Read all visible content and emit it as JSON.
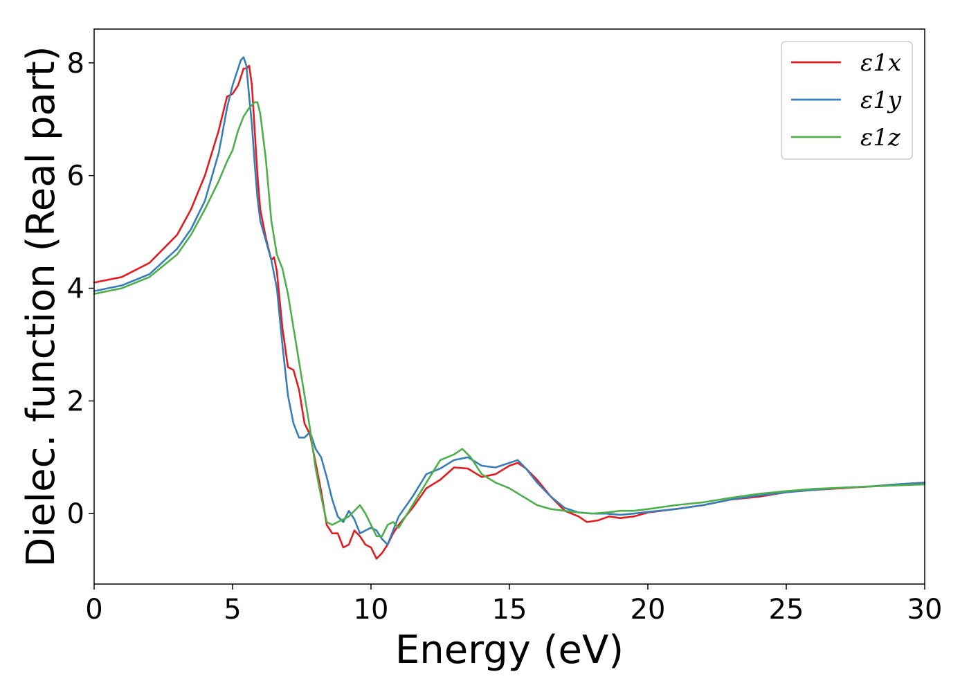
{
  "chart_data": {
    "type": "line",
    "xlabel": "Energy (eV)",
    "ylabel": "Dielec. function (Real part)",
    "xlim": [
      0,
      30
    ],
    "ylim": [
      -1.25,
      8.6
    ],
    "xticks": [
      0,
      5,
      10,
      15,
      20,
      25,
      30
    ],
    "yticks": [
      0,
      2,
      4,
      6,
      8
    ],
    "grid": false,
    "legend_position": "top-right",
    "series": [
      {
        "name": "ε1x",
        "color": "#e41a1c",
        "x": [
          0,
          1,
          2,
          3,
          3.5,
          4,
          4.5,
          4.8,
          5.0,
          5.2,
          5.4,
          5.5,
          5.6,
          5.7,
          5.8,
          5.9,
          6.0,
          6.2,
          6.4,
          6.5,
          6.6,
          6.8,
          7.0,
          7.2,
          7.4,
          7.6,
          7.8,
          8.0,
          8.2,
          8.4,
          8.6,
          8.8,
          9.0,
          9.2,
          9.4,
          9.6,
          9.8,
          10.0,
          10.2,
          10.4,
          10.6,
          10.8,
          11.0,
          11.5,
          12.0,
          12.5,
          13.0,
          13.5,
          14.0,
          14.5,
          15.0,
          15.3,
          15.6,
          16.0,
          16.5,
          17.0,
          17.5,
          17.8,
          18.2,
          18.6,
          19.0,
          19.5,
          20.0,
          21.0,
          22.0,
          23.0,
          24.0,
          25.0,
          26.0,
          27.0,
          28.0,
          29.0,
          30.0
        ],
        "values": [
          4.1,
          4.2,
          4.45,
          4.95,
          5.4,
          6.0,
          6.8,
          7.4,
          7.45,
          7.6,
          7.9,
          7.9,
          7.95,
          7.6,
          6.8,
          6.0,
          5.4,
          4.9,
          4.5,
          4.55,
          4.3,
          3.3,
          2.6,
          2.55,
          2.2,
          1.6,
          1.4,
          0.9,
          0.4,
          -0.2,
          -0.35,
          -0.35,
          -0.6,
          -0.55,
          -0.3,
          -0.4,
          -0.55,
          -0.6,
          -0.8,
          -0.7,
          -0.55,
          -0.35,
          -0.2,
          0.1,
          0.45,
          0.6,
          0.82,
          0.8,
          0.65,
          0.7,
          0.85,
          0.9,
          0.8,
          0.6,
          0.3,
          0.05,
          -0.05,
          -0.15,
          -0.12,
          -0.05,
          -0.08,
          -0.05,
          0.02,
          0.08,
          0.15,
          0.25,
          0.3,
          0.38,
          0.42,
          0.45,
          0.48,
          0.52,
          0.55
        ]
      },
      {
        "name": "ε1y",
        "color": "#377eb8",
        "x": [
          0,
          1,
          2,
          3,
          3.5,
          4,
          4.5,
          4.8,
          5.0,
          5.2,
          5.3,
          5.4,
          5.5,
          5.6,
          5.7,
          5.8,
          5.9,
          6.0,
          6.2,
          6.4,
          6.6,
          6.8,
          7.0,
          7.2,
          7.4,
          7.6,
          7.8,
          8.0,
          8.2,
          8.4,
          8.6,
          8.8,
          9.0,
          9.2,
          9.4,
          9.6,
          9.8,
          10.0,
          10.2,
          10.4,
          10.6,
          10.8,
          11.0,
          11.5,
          12.0,
          12.5,
          13.0,
          13.5,
          14.0,
          14.5,
          15.0,
          15.3,
          15.6,
          16.0,
          16.5,
          17.0,
          17.5,
          18.0,
          18.5,
          19.0,
          19.5,
          20.0,
          21.0,
          22.0,
          23.0,
          24.0,
          25.0,
          26.0,
          27.0,
          28.0,
          29.0,
          30.0
        ],
        "values": [
          3.95,
          4.05,
          4.25,
          4.7,
          5.05,
          5.55,
          6.4,
          7.2,
          7.6,
          7.9,
          8.05,
          8.1,
          7.95,
          7.4,
          6.9,
          6.2,
          5.6,
          5.2,
          4.85,
          4.5,
          4.0,
          3.0,
          2.1,
          1.6,
          1.35,
          1.35,
          1.45,
          1.15,
          1.0,
          0.65,
          0.25,
          -0.05,
          -0.15,
          0.05,
          -0.1,
          -0.35,
          -0.3,
          -0.25,
          -0.3,
          -0.45,
          -0.55,
          -0.3,
          -0.05,
          0.3,
          0.7,
          0.8,
          0.95,
          1.0,
          0.85,
          0.82,
          0.9,
          0.95,
          0.8,
          0.55,
          0.3,
          0.1,
          0.02,
          0.0,
          0.0,
          -0.02,
          0.0,
          0.03,
          0.08,
          0.15,
          0.25,
          0.32,
          0.38,
          0.42,
          0.46,
          0.48,
          0.52,
          0.55
        ]
      },
      {
        "name": "ε1z",
        "color": "#4daf4a",
        "x": [
          0,
          1,
          2,
          3,
          3.5,
          4,
          4.5,
          4.8,
          5.0,
          5.2,
          5.4,
          5.6,
          5.8,
          5.9,
          6.0,
          6.2,
          6.4,
          6.6,
          6.8,
          7.0,
          7.2,
          7.4,
          7.6,
          7.8,
          8.0,
          8.2,
          8.4,
          8.6,
          8.8,
          9.0,
          9.2,
          9.4,
          9.6,
          9.8,
          10.0,
          10.2,
          10.4,
          10.6,
          10.8,
          11.0,
          11.5,
          12.0,
          12.5,
          13.0,
          13.3,
          13.6,
          14.0,
          14.5,
          15.0,
          15.5,
          16.0,
          16.5,
          17.0,
          17.5,
          18.0,
          18.5,
          19.0,
          19.5,
          20.0,
          21.0,
          22.0,
          23.0,
          24.0,
          25.0,
          26.0,
          27.0,
          28.0,
          29.0,
          30.0
        ],
        "values": [
          3.9,
          4.0,
          4.2,
          4.6,
          4.95,
          5.4,
          5.9,
          6.25,
          6.45,
          6.8,
          7.05,
          7.2,
          7.3,
          7.3,
          7.1,
          6.3,
          5.2,
          4.6,
          4.35,
          3.9,
          3.3,
          2.7,
          2.1,
          1.5,
          0.8,
          0.3,
          -0.15,
          -0.2,
          -0.15,
          -0.1,
          -0.05,
          0.05,
          0.15,
          0.0,
          -0.2,
          -0.4,
          -0.4,
          -0.2,
          -0.15,
          -0.25,
          0.15,
          0.55,
          0.95,
          1.05,
          1.15,
          1.0,
          0.7,
          0.55,
          0.45,
          0.3,
          0.15,
          0.08,
          0.05,
          0.02,
          0.0,
          0.02,
          0.05,
          0.05,
          0.08,
          0.15,
          0.2,
          0.28,
          0.35,
          0.4,
          0.44,
          0.46,
          0.48,
          0.5,
          0.52
        ]
      }
    ]
  }
}
